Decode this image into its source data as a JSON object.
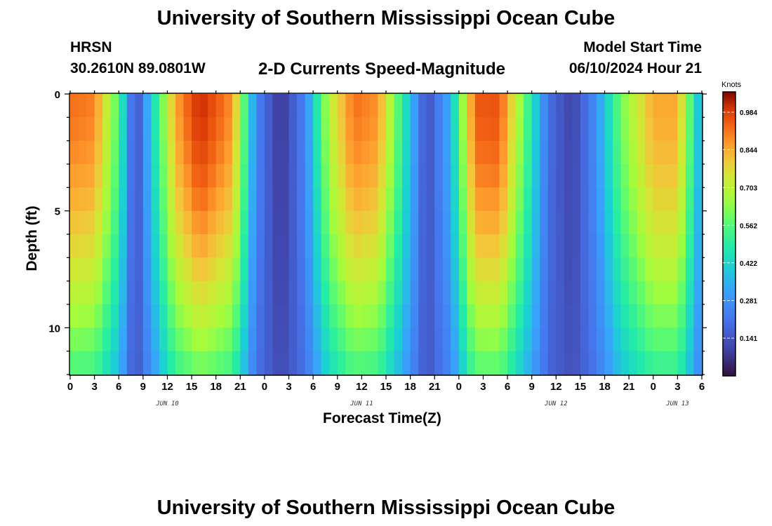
{
  "header": {
    "title": "University of Southern Mississippi Ocean Cube",
    "station": "HRSN",
    "coords": "30.2610N  89.0801W",
    "subtitle": "2-D Currents Speed-Magnitude",
    "start_label": "Model Start Time",
    "start_value": "06/10/2024 Hour 21"
  },
  "footer": {
    "title": "University of Southern Mississippi Ocean Cube"
  },
  "chart_data": {
    "type": "heatmap",
    "xlabel": "Forecast Time(Z)",
    "ylabel": "Depth (ft)",
    "x_hours_range": [
      0,
      78
    ],
    "x_tick_labels": [
      "0",
      "3",
      "6",
      "9",
      "12",
      "15",
      "18",
      "21",
      "0",
      "3",
      "6",
      "9",
      "12",
      "15",
      "18",
      "21",
      "0",
      "3",
      "6",
      "9",
      "12",
      "15",
      "18",
      "21",
      "0",
      "3",
      "6"
    ],
    "date_labels": [
      {
        "label": "JUN 10",
        "hour": 12
      },
      {
        "label": "JUN 11",
        "hour": 36
      },
      {
        "label": "JUN 12",
        "hour": 60
      },
      {
        "label": "JUN 13",
        "hour": 75
      }
    ],
    "y_ticks": [
      0,
      5,
      10
    ],
    "ylim": [
      0,
      12
    ],
    "colorbar": {
      "unit": "Knots",
      "range": [
        0.0,
        1.06
      ],
      "ticks": [
        "0.141",
        "0.281",
        "0.422",
        "0.562",
        "0.703",
        "0.844",
        "0.984"
      ],
      "tick_values": [
        0.141,
        0.281,
        0.422,
        0.562,
        0.703,
        0.844,
        0.984
      ]
    },
    "surface_speed_profile": {
      "hours": [
        0,
        3,
        6,
        8,
        13,
        16,
        20,
        23,
        26,
        29,
        32,
        35,
        38,
        41,
        44,
        47,
        50,
        53,
        56,
        59,
        62,
        65,
        68,
        72,
        75,
        78
      ],
      "knots": [
        0.92,
        0.9,
        0.55,
        0.1,
        0.85,
        1.02,
        0.88,
        0.25,
        0.07,
        0.25,
        0.7,
        0.92,
        0.88,
        0.5,
        0.12,
        0.35,
        0.95,
        0.96,
        0.6,
        0.2,
        0.1,
        0.28,
        0.6,
        0.85,
        0.85,
        0.3
      ]
    },
    "depth_attenuation": "speeds decrease with depth; strong-flow lobes narrow toward the bottom"
  }
}
